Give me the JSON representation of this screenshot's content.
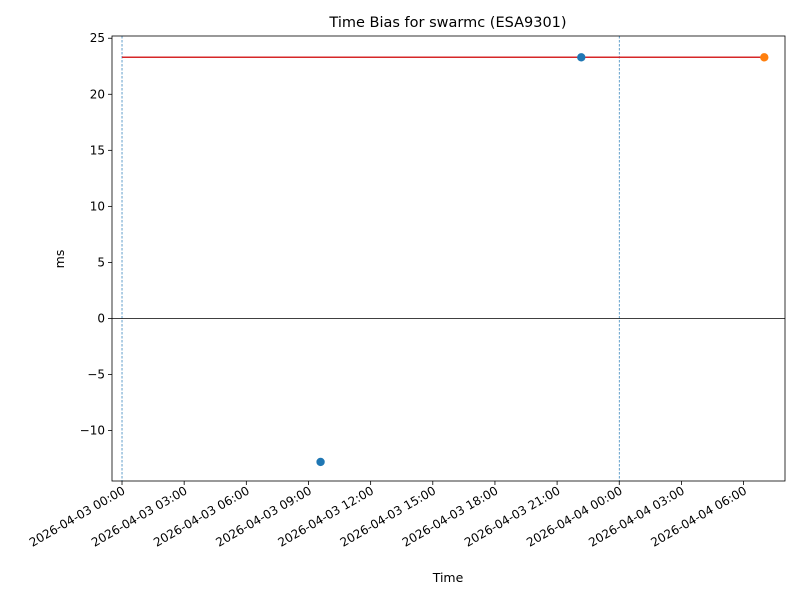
{
  "chart_data": {
    "type": "scatter",
    "title": "Time Bias for swarmc (ESA9301)",
    "xlabel": "Time",
    "ylabel": "ms",
    "xlim": [
      "2026-04-02T23:31",
      "2026-04-04T08:00"
    ],
    "ylim": [
      -14.5,
      25.2
    ],
    "y_ticks": [
      -10,
      -5,
      0,
      5,
      10,
      15,
      20,
      25
    ],
    "y_tick_labels": [
      "−10",
      "−5",
      "0",
      "5",
      "10",
      "15",
      "20",
      "25"
    ],
    "x_ticks": [
      "2026-04-03T00:00",
      "2026-04-03T03:00",
      "2026-04-03T06:00",
      "2026-04-03T09:00",
      "2026-04-03T12:00",
      "2026-04-03T15:00",
      "2026-04-03T18:00",
      "2026-04-03T21:00",
      "2026-04-04T00:00",
      "2026-04-04T03:00",
      "2026-04-04T06:00"
    ],
    "x_tick_labels": [
      "2026-04-03 00:00",
      "2026-04-03 03:00",
      "2026-04-03 06:00",
      "2026-04-03 09:00",
      "2026-04-03 12:00",
      "2026-04-03 15:00",
      "2026-04-03 18:00",
      "2026-04-03 21:00",
      "2026-04-04 00:00",
      "2026-04-04 03:00",
      "2026-04-04 06:00"
    ],
    "series": [
      {
        "color": "#1f77b4",
        "points": [
          {
            "x": "2026-04-03T09:35",
            "y": -12.8
          },
          {
            "x": "2026-04-03T22:10",
            "y": 23.3
          }
        ]
      },
      {
        "color": "#ff7f0e",
        "points": [
          {
            "x": "2026-04-04T07:00",
            "y": 23.3
          }
        ]
      }
    ],
    "horizontal_line": {
      "x_from": "2026-04-03T00:00",
      "x_to": "2026-04-04T07:00",
      "y": 23.3,
      "color": "#d62728"
    },
    "zero_line": {
      "y": 0,
      "color": "#000000"
    },
    "vertical_lines": [
      {
        "x": "2026-04-03T00:00",
        "color": "#1f77b4"
      },
      {
        "x": "2026-04-04T00:00",
        "color": "#1f77b4"
      }
    ],
    "grid": false,
    "legend": "none"
  }
}
